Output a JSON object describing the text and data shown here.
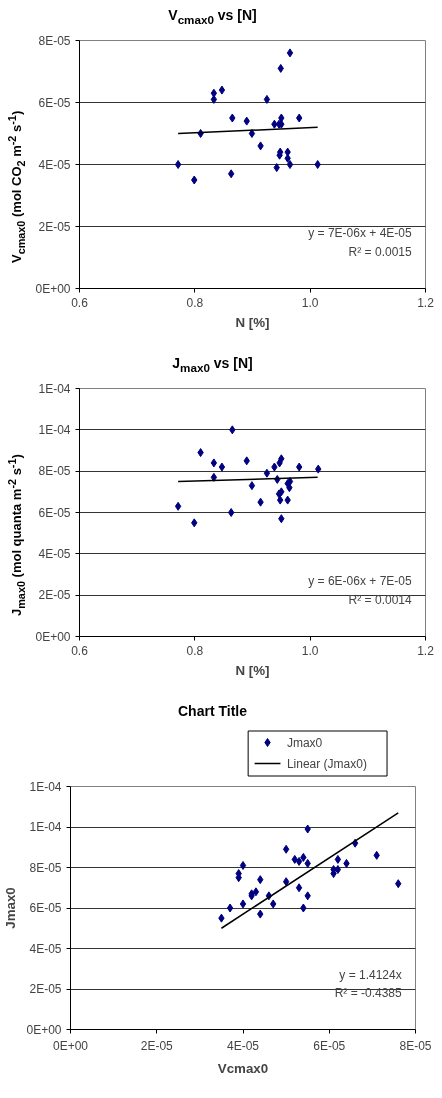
{
  "chart_data": [
    {
      "type": "scatter",
      "title": "V$_{cmax0}$ vs [N]",
      "xlabel": "N [%]",
      "ylabel": "V$_{cmax0}$ (mol CO$_{2}$ m$^{-2}$ s$^{-1}$)",
      "series": [
        {
          "color": "#000080",
          "x": [
            0.771,
            0.799,
            0.81,
            0.833,
            0.833,
            0.847,
            0.865,
            0.863,
            0.89,
            0.899,
            0.914,
            0.925,
            0.938,
            0.946,
            0.95,
            0.95,
            0.949,
            0.965,
            0.981,
            0.948,
            0.947,
            0.961,
            0.961,
            0.942,
            0.965,
            1.013
          ],
          "values": [
            4e-05,
            3.5e-05,
            5e-05,
            6.3e-05,
            6.1e-05,
            6.4e-05,
            5.5e-05,
            3.7e-05,
            5.4e-05,
            5e-05,
            4.6e-05,
            6.1e-05,
            5.3e-05,
            5.3e-05,
            5.5e-05,
            5.3e-05,
            7.1e-05,
            7.6e-05,
            5.5e-05,
            4.4e-05,
            4.3e-05,
            4.4e-05,
            4.2e-05,
            3.9e-05,
            4e-05,
            4e-05
          ]
        },
        {
          "type": "line",
          "marker": "none",
          "color": "#000000",
          "x": [
            0.771,
            1.013
          ],
          "values": [
            5e-05,
            5.2e-05
          ]
        }
      ],
      "xlim": [
        0.6,
        1.2
      ],
      "xticks": [
        0.6,
        0.8,
        {
          "value": 1.0,
          "label": "1.0"
        },
        1.2
      ],
      "ylim": [
        0,
        8e-05
      ],
      "yticks": [
        {
          "value": 0,
          "label": "0E+00"
        },
        {
          "value": 2e-05,
          "label": "2E-05"
        },
        {
          "value": 4e-05,
          "label": "4E-05"
        },
        {
          "value": 6e-05,
          "label": "6E-05"
        },
        {
          "value": 8e-05,
          "label": "8E-05"
        }
      ],
      "annotations": [
        "y = 7E-06x + 4E-05",
        "R² = 0.0015"
      ],
      "grid": "y",
      "marker": "diamond"
    },
    {
      "type": "scatter",
      "title": "J$_{max0}$ vs [N]",
      "xlabel": "N [%]",
      "ylabel": "J$_{max0}$ (mol quanta m$^{-2}$ s$^{-1}$)",
      "series": [
        {
          "color": "#000080",
          "x": [
            0.771,
            0.799,
            0.81,
            0.833,
            0.833,
            0.847,
            0.865,
            0.863,
            0.89,
            0.899,
            0.914,
            0.925,
            0.938,
            0.947,
            0.95,
            0.943,
            0.981,
            1.014,
            0.946,
            0.95,
            0.948,
            0.961,
            0.95,
            0.961,
            0.965,
            0.964
          ],
          "values": [
            6.3e-05,
            5.5e-05,
            8.9e-05,
            8.4e-05,
            7.7e-05,
            8.2e-05,
            0.0001,
            6e-05,
            8.5e-05,
            7.3e-05,
            6.5e-05,
            7.9e-05,
            8.2e-05,
            8.4e-05,
            8.6e-05,
            7.6e-05,
            8.2e-05,
            8.1e-05,
            6.9e-05,
            7e-05,
            6.6e-05,
            6.6e-05,
            5.7e-05,
            7.4e-05,
            7.5e-05,
            7.2e-05
          ]
        },
        {
          "type": "line",
          "marker": "none",
          "color": "#000000",
          "x": [
            0.771,
            1.013
          ],
          "values": [
            7.5e-05,
            7.7e-05
          ]
        }
      ],
      "xlim": [
        0.6,
        1.2
      ],
      "xticks": [
        0.6,
        0.8,
        {
          "value": 1.0,
          "label": "1.0"
        },
        1.2
      ],
      "ylim": [
        0,
        0.00012
      ],
      "yticks": [
        {
          "value": 0,
          "label": "0E+00"
        },
        {
          "value": 2e-05,
          "label": "2E-05"
        },
        {
          "value": 4e-05,
          "label": "4E-05"
        },
        {
          "value": 6e-05,
          "label": "6E-05"
        },
        {
          "value": 8e-05,
          "label": "8E-05"
        },
        {
          "value": 0.0001,
          "label": "1E-04"
        },
        {
          "value": 0.00012,
          "label": "1E-04"
        }
      ],
      "annotations": [
        "y = 6E-06x + 7E-05",
        "R² = 0.0014"
      ],
      "grid": "y",
      "marker": "diamond"
    },
    {
      "type": "scatter",
      "title": "Chart Title",
      "xlabel": "Vcmax0",
      "ylabel": "Jmax0",
      "series": [
        {
          "name": "Jmax0",
          "color": "#000080",
          "x": [
            3.5e-05,
            3.7e-05,
            4e-05,
            3.9e-05,
            3.9e-05,
            4e-05,
            4.4e-05,
            4.2e-05,
            4.2e-05,
            4.3e-05,
            4.4e-05,
            4.6e-05,
            4.7e-05,
            5e-05,
            5e-05,
            5.2e-05,
            5.3e-05,
            5.3e-05,
            5.4e-05,
            5.5e-05,
            5.4e-05,
            5.5e-05,
            5.5e-05,
            6.1e-05,
            6.1e-05,
            6.2e-05,
            6.2e-05,
            6.4e-05,
            6.6e-05,
            7.1e-05,
            7.6e-05
          ],
          "values": [
            5.5e-05,
            6e-05,
            6.2e-05,
            7.5e-05,
            7.7e-05,
            8.1e-05,
            5.7e-05,
            6.6e-05,
            6.7e-05,
            6.8e-05,
            7.4e-05,
            6.6e-05,
            6.2e-05,
            8.9e-05,
            7.3e-05,
            8.4e-05,
            8.3e-05,
            7e-05,
            8.5e-05,
            8.2e-05,
            6e-05,
            6.6e-05,
            9.9e-05,
            7.9e-05,
            7.7e-05,
            7.9e-05,
            8.4e-05,
            8.2e-05,
            9.2e-05,
            8.6e-05,
            7.2e-05
          ]
        },
        {
          "type": "line",
          "marker": "none",
          "name": "Linear (Jmax0)",
          "color": "#000000",
          "x": [
            3.5e-05,
            7.6e-05
          ],
          "values": [
            5e-05,
            0.000107
          ]
        }
      ],
      "xlim": [
        0,
        8e-05
      ],
      "xticks": [
        {
          "value": 0,
          "label": "0E+00"
        },
        {
          "value": 2e-05,
          "label": "2E-05"
        },
        {
          "value": 4e-05,
          "label": "4E-05"
        },
        {
          "value": 6e-05,
          "label": "6E-05"
        },
        {
          "value": 8e-05,
          "label": "8E-05"
        }
      ],
      "ylim": [
        0,
        0.00012
      ],
      "yticks": [
        {
          "value": 0,
          "label": "0E+00"
        },
        {
          "value": 2e-05,
          "label": "2E-05"
        },
        {
          "value": 4e-05,
          "label": "4E-05"
        },
        {
          "value": 6e-05,
          "label": "6E-05"
        },
        {
          "value": 8e-05,
          "label": "8E-05"
        },
        {
          "value": 0.0001,
          "label": "1E-04"
        },
        {
          "value": 0.00012,
          "label": "1E-04"
        }
      ],
      "annotations": [
        "y = 1.4124x",
        "R² = -0.4385"
      ],
      "grid": "y",
      "marker": "diamond",
      "legend": "top right"
    }
  ]
}
